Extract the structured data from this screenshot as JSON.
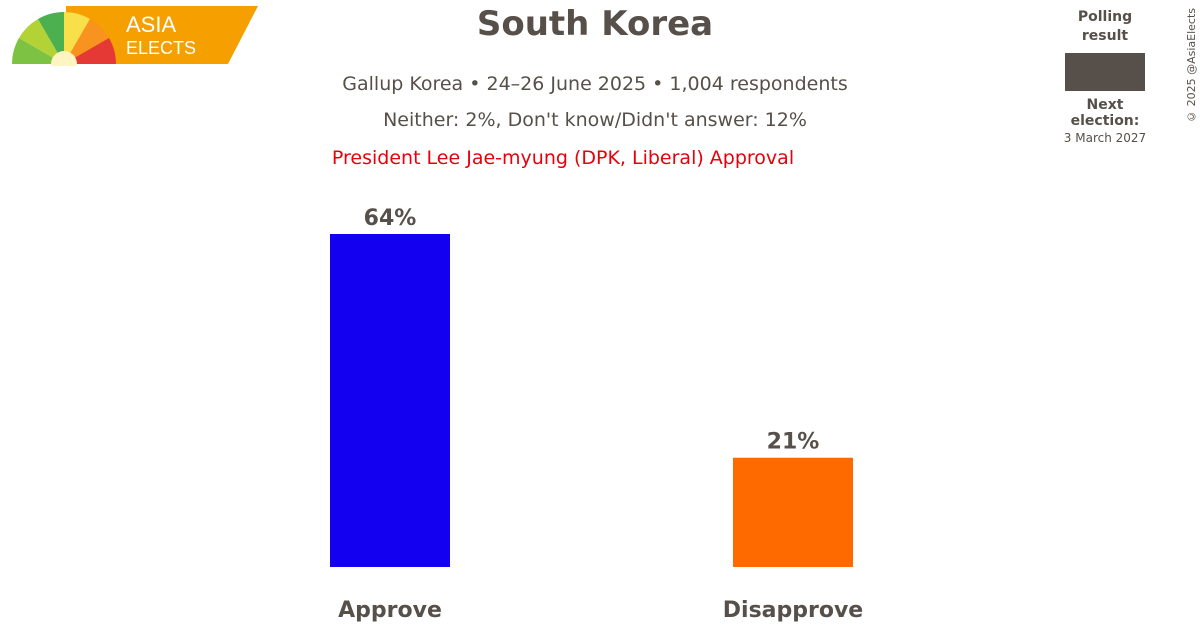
{
  "logo": {
    "line1": "ASIA",
    "line2": "ELECTS",
    "accent_color": "#f5a000"
  },
  "header": {
    "title": "South Korea",
    "subtitle_1": "Gallup Korea • 24–26 June 2025 • 1,004 respondents",
    "subtitle_2": "Neither: 2%, Don't know/Didn't answer: 12%",
    "question": "President Lee Jae-myung (DPK, Liberal) Approval"
  },
  "legend": {
    "title_line1": "Polling",
    "title_line2": "result",
    "swatch_color": "#57504a",
    "next_election_label": "Next election:",
    "next_election_date": "3 March 2027"
  },
  "credit": "© 2025 @AsiaElects",
  "chart_data": {
    "type": "bar",
    "categories": [
      "Approve",
      "Disapprove"
    ],
    "values": [
      64,
      21
    ],
    "value_labels": [
      "64%",
      "21%"
    ],
    "colors": [
      "#1400f0",
      "#ff6a00"
    ],
    "ylim": [
      0,
      64
    ]
  }
}
